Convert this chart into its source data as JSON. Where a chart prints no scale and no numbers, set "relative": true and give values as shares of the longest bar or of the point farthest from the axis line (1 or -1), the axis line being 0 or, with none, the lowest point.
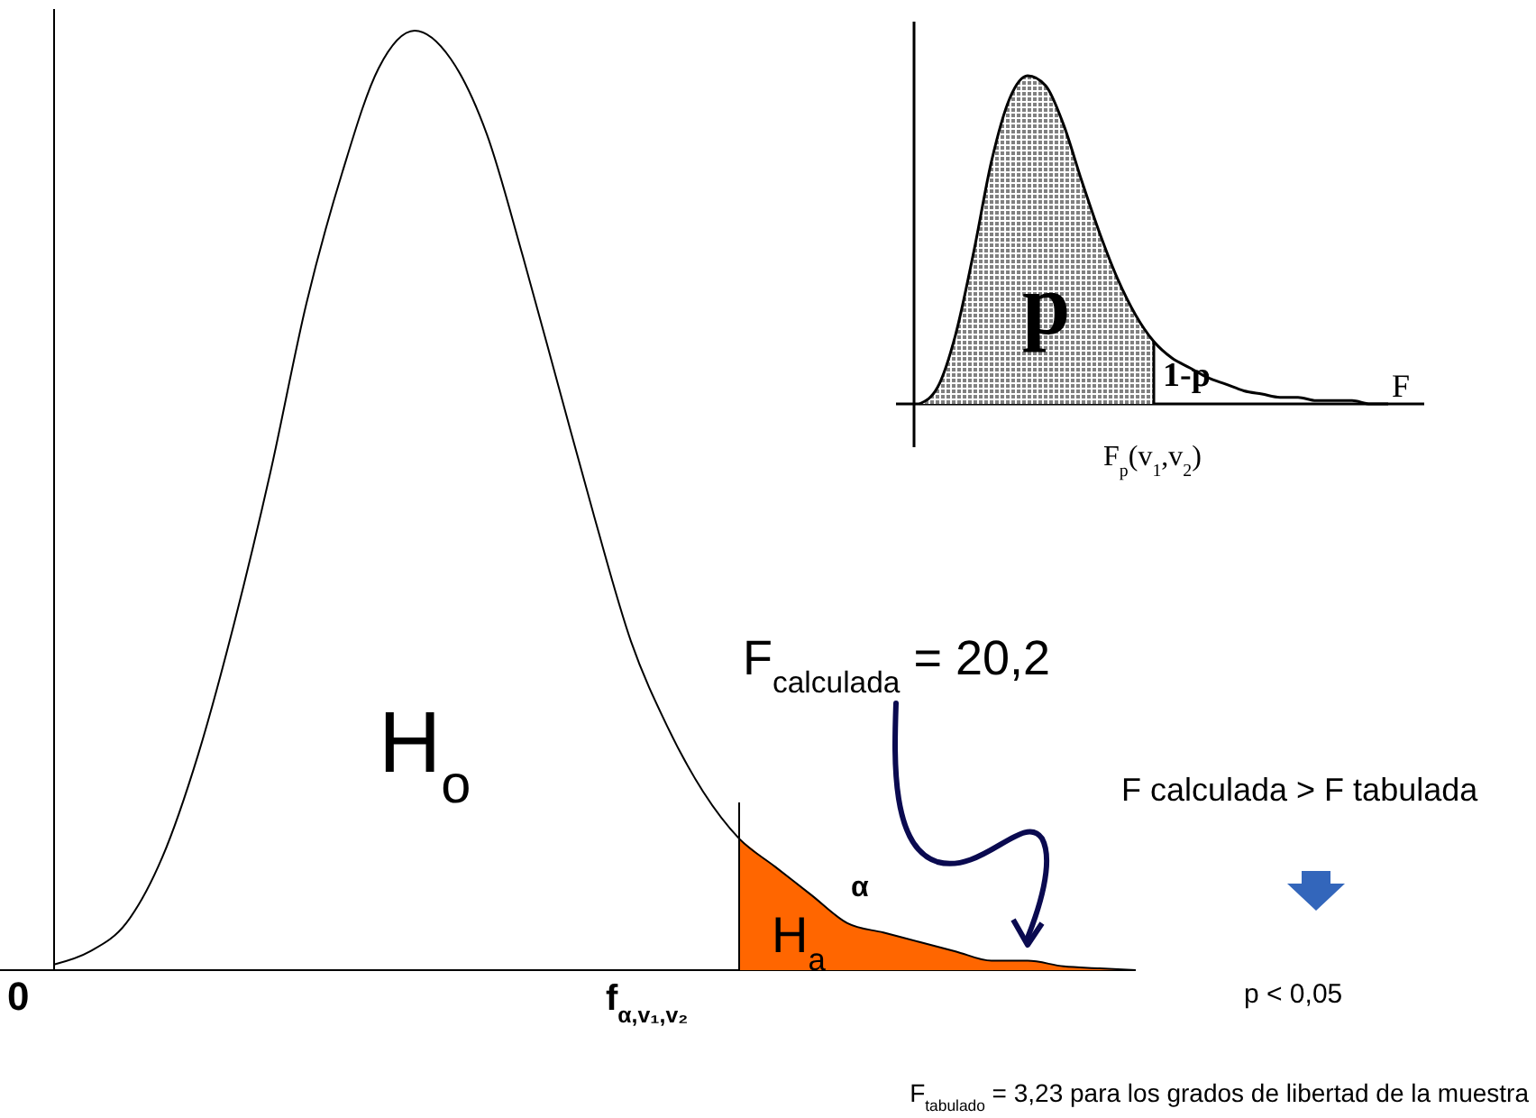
{
  "chart_data": [
    {
      "type": "line",
      "relative": true,
      "categories": [
        null,
        null,
        null,
        null,
        null,
        null,
        null,
        null,
        null,
        null,
        null,
        null,
        null,
        null,
        null,
        null,
        null,
        null,
        null,
        null,
        null,
        null,
        null,
        null,
        null,
        null,
        null,
        null,
        null,
        null,
        null
      ],
      "series": [
        {
          "type": "area",
          "color": "#ff6600",
          "values": [
            null,
            null,
            null,
            null,
            null,
            null,
            null,
            null,
            null,
            null,
            null,
            null,
            null,
            null,
            null,
            null,
            null,
            null,
            null,
            0.14,
            0.11,
            0.08,
            0.05,
            0.04,
            0.03,
            0.02,
            0.01,
            0.01,
            0.004,
            0.002,
            0
          ]
        },
        {
          "color": "#000000",
          "values": [
            0.006,
            0.02,
            0.05,
            0.12,
            0.23,
            0.37,
            0.53,
            0.71,
            0.85,
            0.96,
            1,
            0.97,
            0.89,
            0.76,
            0.62,
            0.48,
            0.35,
            0.26,
            0.19,
            0.14,
            0.11,
            0.08,
            0.05,
            0.04,
            0.03,
            0.02,
            0.01,
            0.01,
            0.004,
            0.002,
            0
          ]
        }
      ],
      "annotations": [
        "H$_{o}$",
        "H$_{a}$",
        "α",
        "0",
        "f$_{α,v₁,v₂}$",
        "F$_{calculada}$ = 20,2",
        "F calculada > F tabulada",
        "p < 0,05",
        "F$_{tabulado}$ = 3,23 para los grados de libertad de la muestra"
      ]
    },
    {
      "type": "line",
      "relative": true,
      "xlabel": "F",
      "categories": [
        null,
        null,
        null,
        null,
        null,
        null,
        null,
        null,
        null,
        null,
        null,
        null,
        null,
        null,
        null,
        null,
        null,
        null,
        null,
        null,
        null,
        null,
        null,
        null,
        null,
        null,
        null
      ],
      "series": [
        {
          "type": "area",
          "color": "#808080",
          "values": [
            0,
            0.05,
            0.21,
            0.46,
            0.74,
            0.93,
            1,
            0.97,
            0.85,
            0.68,
            0.52,
            0.38,
            0.27,
            0.19,
            null,
            null,
            null,
            null,
            null,
            null,
            null,
            null,
            null,
            null,
            null,
            null,
            null
          ]
        },
        {
          "color": "#000000",
          "values": [
            0,
            0.05,
            0.21,
            0.46,
            0.74,
            0.93,
            1,
            0.97,
            0.85,
            0.68,
            0.52,
            0.38,
            0.27,
            0.19,
            0.14,
            0.11,
            0.08,
            0.06,
            0.04,
            0.03,
            0.02,
            0.02,
            0.01,
            0.01,
            0.01,
            0,
            0
          ]
        }
      ],
      "annotations": [
        "p",
        "1-p",
        "F$_{p}$(v$_{1}$,v$_{2}$)"
      ]
    }
  ]
}
